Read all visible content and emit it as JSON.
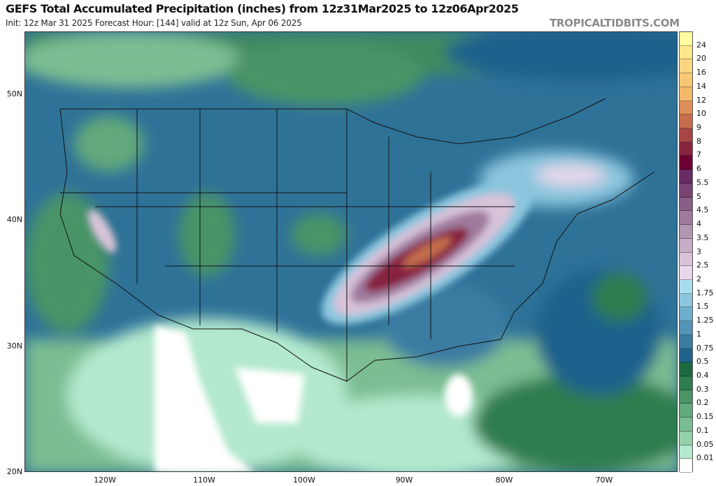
{
  "header": {
    "title": "GEFS Total Accumulated Precipitation (inches) from 12z31Mar2025 to 12z06Apr2025",
    "subtitle": "Init: 12z Mar 31 2025   Forecast Hour: [144]   valid at 12z Sun, Apr 06 2025",
    "watermark": "TROPICALTIDBITS.COM"
  },
  "map": {
    "lat_labels": [
      "50N",
      "40N",
      "30N",
      "20N"
    ],
    "lon_labels": [
      "120W",
      "110W",
      "100W",
      "90W",
      "80W",
      "70W"
    ]
  },
  "colorbar": {
    "labels": [
      "24",
      "20",
      "16",
      "14",
      "12",
      "10",
      "9",
      "8",
      "7",
      "6",
      "5.5",
      "5",
      "4.5",
      "4",
      "3.5",
      "3",
      "2.5",
      "2",
      "1.75",
      "1.5",
      "1.25",
      "1",
      "0.75",
      "0.5",
      "0.4",
      "0.3",
      "0.2",
      "0.15",
      "0.1",
      "0.05",
      "0.01"
    ],
    "colors": [
      "#fffca0",
      "#fde78c",
      "#fbd680",
      "#f8c775",
      "#f4b86a",
      "#dd8f57",
      "#c56d4d",
      "#a64544",
      "#88243f",
      "#6d0032",
      "#682b62",
      "#794474",
      "#8b5e88",
      "#9f7a9e",
      "#b395b2",
      "#c6adc8",
      "#d7c2d9",
      "#e8d7ea",
      "#a9dcef",
      "#8cc6de",
      "#6eaecd",
      "#5394b8",
      "#3a7ca2",
      "#1f628c",
      "#1c6a40",
      "#2e7d50",
      "#4a9466",
      "#62a97c",
      "#7bbd92",
      "#94d1aa",
      "#b3e9cd",
      "#ffffff"
    ]
  }
}
